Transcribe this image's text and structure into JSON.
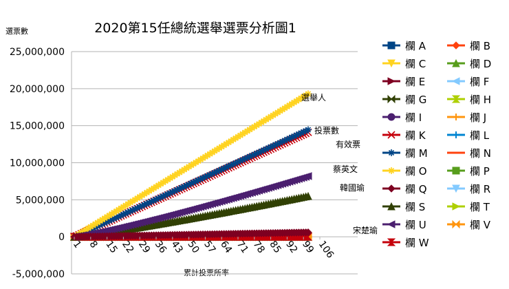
{
  "chart_data": {
    "type": "line",
    "title": "2020第15任總統選舉選票分析圖1",
    "xlabel": "累計投票所率",
    "ylabel": "選票數",
    "ylim": [
      -5000000,
      25000000
    ],
    "y_ticks": [
      -5000000,
      0,
      5000000,
      10000000,
      15000000,
      20000000,
      25000000
    ],
    "y_tick_labels": [
      "-5,000,000",
      "0",
      "5,000,000",
      "10,000,000",
      "15,000,000",
      "20,000,000",
      "25,000,000"
    ],
    "x_tick_labels": [
      "1",
      "8",
      "15",
      "22",
      "29",
      "36",
      "43",
      "50",
      "57",
      "64",
      "71",
      "78",
      "85",
      "92",
      "99",
      "106"
    ],
    "x_tick_values": [
      1,
      8,
      15,
      22,
      29,
      36,
      43,
      50,
      57,
      64,
      71,
      78,
      85,
      92,
      99,
      106
    ],
    "xlim": [
      1,
      101
    ],
    "gridlines": "horizontal",
    "legend_position": "right",
    "annotations": [
      {
        "text": "選舉人",
        "series": "O"
      },
      {
        "text": "投票數",
        "series": "M"
      },
      {
        "text": "有效票",
        "series": "K"
      },
      {
        "text": "蔡英文",
        "series": "U"
      },
      {
        "text": "韓國瑜",
        "series": "S"
      },
      {
        "text": "宋楚瑜",
        "series": "Q"
      }
    ],
    "series": [
      {
        "name": "欄  A",
        "color": "#004586",
        "marker": "square",
        "start": 0,
        "end": 0
      },
      {
        "name": "欄  B",
        "color": "#ff420e",
        "marker": "diamond",
        "start": 0,
        "end": 0
      },
      {
        "name": "欄  C",
        "color": "#ffd320",
        "marker": "tri-down",
        "start": 0,
        "end": 0
      },
      {
        "name": "欄  D",
        "color": "#579d1c",
        "marker": "tri-up",
        "start": 0,
        "end": 0
      },
      {
        "name": "欄  E",
        "color": "#7e0021",
        "marker": "tri-right",
        "start": 0,
        "end": 0
      },
      {
        "name": "欄  F",
        "color": "#83caff",
        "marker": "tri-left",
        "start": 0,
        "end": 0
      },
      {
        "name": "欄  G",
        "color": "#314004",
        "marker": "bowtie",
        "start": 0,
        "end": 0
      },
      {
        "name": "欄  H",
        "color": "#aecf00",
        "marker": "hourglass",
        "start": 0,
        "end": 0
      },
      {
        "name": "欄  I",
        "color": "#4b1f6f",
        "marker": "circle",
        "start": 0,
        "end": 0
      },
      {
        "name": "欄  J",
        "color": "#ff950e",
        "marker": "plus",
        "start": 0,
        "end": 0
      },
      {
        "name": "欄  K",
        "color": "#c5000b",
        "marker": "x",
        "start": 0,
        "end": 14100000
      },
      {
        "name": "欄  L",
        "color": "#0084d1",
        "marker": "plus",
        "start": 0,
        "end": 0
      },
      {
        "name": "欄  M",
        "color": "#004586",
        "marker": "star",
        "start": 0,
        "end": 14450000
      },
      {
        "name": "欄  N",
        "color": "#ff420e",
        "marker": "dash",
        "start": 0,
        "end": 0
      },
      {
        "name": "欄  O",
        "color": "#ffd320",
        "marker": "star",
        "start": 0,
        "end": 19300000
      },
      {
        "name": "欄  P",
        "color": "#579d1c",
        "marker": "square",
        "start": 0,
        "end": 0
      },
      {
        "name": "欄  Q",
        "color": "#7e0021",
        "marker": "diamond",
        "start": 0,
        "end": 600000
      },
      {
        "name": "欄  R",
        "color": "#83caff",
        "marker": "tri-down",
        "start": 0,
        "end": 0
      },
      {
        "name": "欄  S",
        "color": "#314004",
        "marker": "tri-up",
        "start": 0,
        "end": 5500000
      },
      {
        "name": "欄  T",
        "color": "#aecf00",
        "marker": "tri-right",
        "start": 0,
        "end": 0
      },
      {
        "name": "欄  U",
        "color": "#4b1f6f",
        "marker": "tri-left",
        "start": 0,
        "end": 8200000
      },
      {
        "name": "欄  V",
        "color": "#ff950e",
        "marker": "bowtie",
        "start": 0,
        "end": 0
      },
      {
        "name": "欄  W",
        "color": "#c5000b",
        "marker": "hourglass",
        "start": 0,
        "end": 0
      }
    ]
  }
}
